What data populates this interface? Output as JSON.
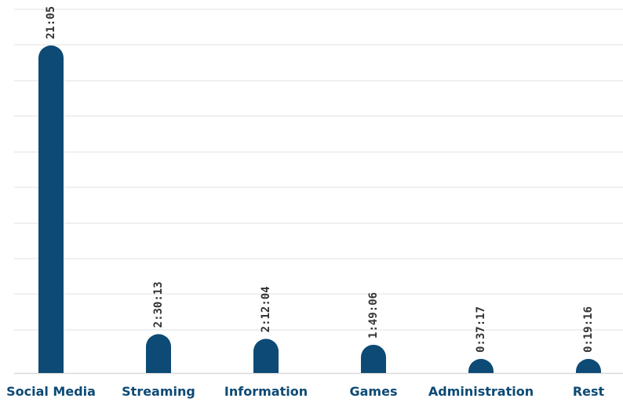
{
  "chart_data": {
    "type": "bar",
    "categories": [
      "Social Media",
      "Streaming",
      "Information",
      "Games",
      "Administration",
      "Rest"
    ],
    "values": [
      75900,
      9013,
      7924,
      6546,
      2237,
      1156
    ],
    "value_labels": [
      "21:05",
      "2:30:13",
      "2:12:04",
      "1:49:06",
      "0:37:17",
      "0:19:16"
    ],
    "value_unit": "seconds",
    "title": "",
    "xlabel": "",
    "ylabel": "",
    "ylim": [
      0,
      82000
    ],
    "grid": true,
    "legend": "none",
    "colors": {
      "bar": "#0d4a75",
      "category_text": "#0d4a75",
      "value_text": "#333333",
      "grid": "#ececec"
    }
  }
}
